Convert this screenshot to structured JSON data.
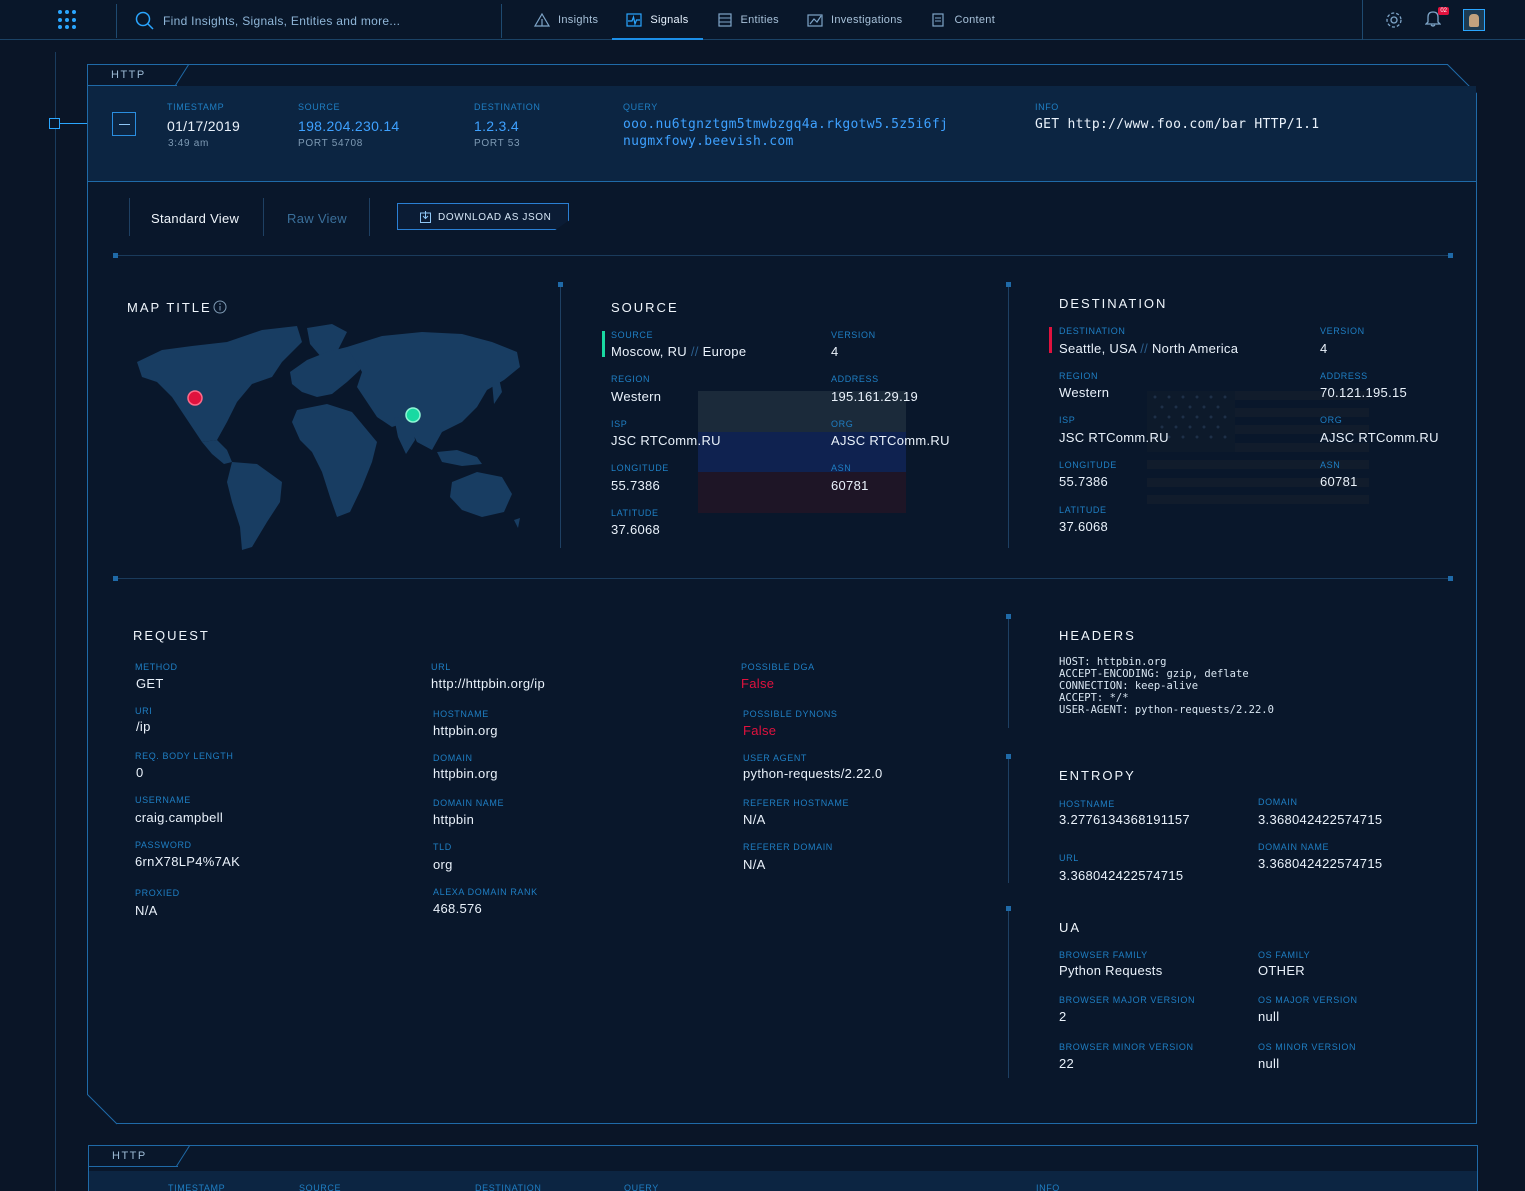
{
  "topbar": {
    "search_placeholder": "Find Insights, Signals, Entities and more...",
    "nav": [
      {
        "label": "Insights",
        "icon": "insights-icon"
      },
      {
        "label": "Signals",
        "icon": "signals-icon",
        "active": true
      },
      {
        "label": "Entities",
        "icon": "entities-icon"
      },
      {
        "label": "Investigations",
        "icon": "investigations-icon"
      },
      {
        "label": "Content",
        "icon": "content-icon"
      }
    ],
    "notification_count": "02"
  },
  "card": {
    "type_label": "HTTP",
    "timestamp_label": "TIMESTAMP",
    "timestamp_date": "01/17/2019",
    "timestamp_time": "3:49 am",
    "source_label": "SOURCE",
    "source_ip": "198.204.230.14",
    "source_port": "PORT 54708",
    "destination_label": "DESTINATION",
    "destination_ip": "1.2.3.4",
    "destination_port": "PORT 53",
    "query_label": "QUERY",
    "query_line1": "ooo.nu6tgnztgm5tmwbzgq4a.rkgotw5.5z5i6fj",
    "query_line2": "nugmxfowy.beevish.com",
    "info_label": "INFO",
    "info_value": "GET http://www.foo.com/bar HTTP/1.1"
  },
  "views": {
    "standard": "Standard View",
    "raw": "Raw View",
    "download": "DOWNLOAD AS JSON"
  },
  "map": {
    "title": "MAP TITLE"
  },
  "source_geo": {
    "title": "SOURCE",
    "source_label": "SOURCE",
    "location_city": "Moscow, RU",
    "location_sep": "//",
    "location_region": "Europe",
    "version_label": "VERSION",
    "version": "4",
    "region_label": "REGION",
    "region": "Western",
    "address_label": "ADDRESS",
    "address": "195.161.29.19",
    "isp_label": "ISP",
    "isp": "JSC RTComm.RU",
    "org_label": "ORG",
    "org": "AJSC RTComm.RU",
    "longitude_label": "LONGITUDE",
    "longitude": "55.7386",
    "asn_label": "ASN",
    "asn": "60781",
    "latitude_label": "LATITUDE",
    "latitude": "37.6068"
  },
  "destination_geo": {
    "title": "DESTINATION",
    "destination_label": "DESTINATION",
    "location_city": "Seattle, USA",
    "location_sep": "//",
    "location_region": "North America",
    "version_label": "VERSION",
    "version": "4",
    "region_label": "REGION",
    "region": "Western",
    "address_label": "ADDRESS",
    "address": "70.121.195.15",
    "isp_label": "ISP",
    "isp": "JSC RTComm.RU",
    "org_label": "ORG",
    "org": "AJSC RTComm.RU",
    "longitude_label": "LONGITUDE",
    "longitude": "55.7386",
    "asn_label": "ASN",
    "asn": "60781",
    "latitude_label": "LATITUDE",
    "latitude": "37.6068"
  },
  "request": {
    "title": "REQUEST",
    "method_label": "METHOD",
    "method": "GET",
    "uri_label": "URI",
    "uri": "/ip",
    "body_len_label": "REQ. BODY LENGTH",
    "body_len": "0",
    "username_label": "USERNAME",
    "username": "craig.campbell",
    "password_label": "PASSWORD",
    "password": "6rnX78LP4%7AK",
    "proxied_label": "PROXIED",
    "proxied": "N/A",
    "url_label": "URL",
    "url": "http://httpbin.org/ip",
    "hostname_label": "HOSTNAME",
    "hostname": "httpbin.org",
    "domain_label": "DOMAIN",
    "domain": "httpbin.org",
    "domain_name_label": "DOMAIN NAME",
    "domain_name": "httpbin",
    "tld_label": "TLD",
    "tld": "org",
    "alexa_label": "ALEXA DOMAIN RANK",
    "alexa": "468.576",
    "dga_label": "POSSIBLE DGA",
    "dga": "False",
    "dynons_label": "POSSIBLE DYNONS",
    "dynons": "False",
    "user_agent_label": "USER AGENT",
    "user_agent": "python-requests/2.22.0",
    "referer_host_label": "REFERER HOSTNAME",
    "referer_host": "N/A",
    "referer_domain_label": "REFERER DOMAIN",
    "referer_domain": "N/A"
  },
  "headers": {
    "title": "HEADERS",
    "text": "HOST: httpbin.org\nACCEPT-ENCODING: gzip, deflate\nCONNECTION: keep-alive\nACCEPT: */*\nUSER-AGENT: python-requests/2.22.0"
  },
  "entropy": {
    "title": "ENTROPY",
    "hostname_label": "HOSTNAME",
    "hostname": "3.2776134368191157",
    "domain_label": "DOMAIN",
    "domain": "3.368042422574715",
    "url_label": "URL",
    "url": "3.368042422574715",
    "domain_name_label": "DOMAIN NAME",
    "domain_name": "3.368042422574715"
  },
  "ua": {
    "title": "UA",
    "browser_family_label": "BROWSER FAMILY",
    "browser_family": "Python Requests",
    "os_family_label": "OS FAMILY",
    "os_family": "OTHER",
    "browser_major_label": "BROWSER MAJOR VERSION",
    "browser_major": "2",
    "os_major_label": "OS MAJOR VERSION",
    "os_major": "null",
    "browser_minor_label": "BROWSER MINOR VERSION",
    "browser_minor": "22",
    "os_minor_label": "OS MINOR VERSION",
    "os_minor": "null"
  },
  "card2": {
    "type_label": "HTTP",
    "timestamp_label": "TIMESTAMP",
    "source_label": "SOURCE",
    "destination_label": "DESTINATION",
    "query_label": "QUERY",
    "info_label": "INFO"
  },
  "colors": {
    "accent": "#1c8fe8",
    "link": "#3ea1ff",
    "danger": "#e0123e",
    "ok": "#19d9a2"
  }
}
